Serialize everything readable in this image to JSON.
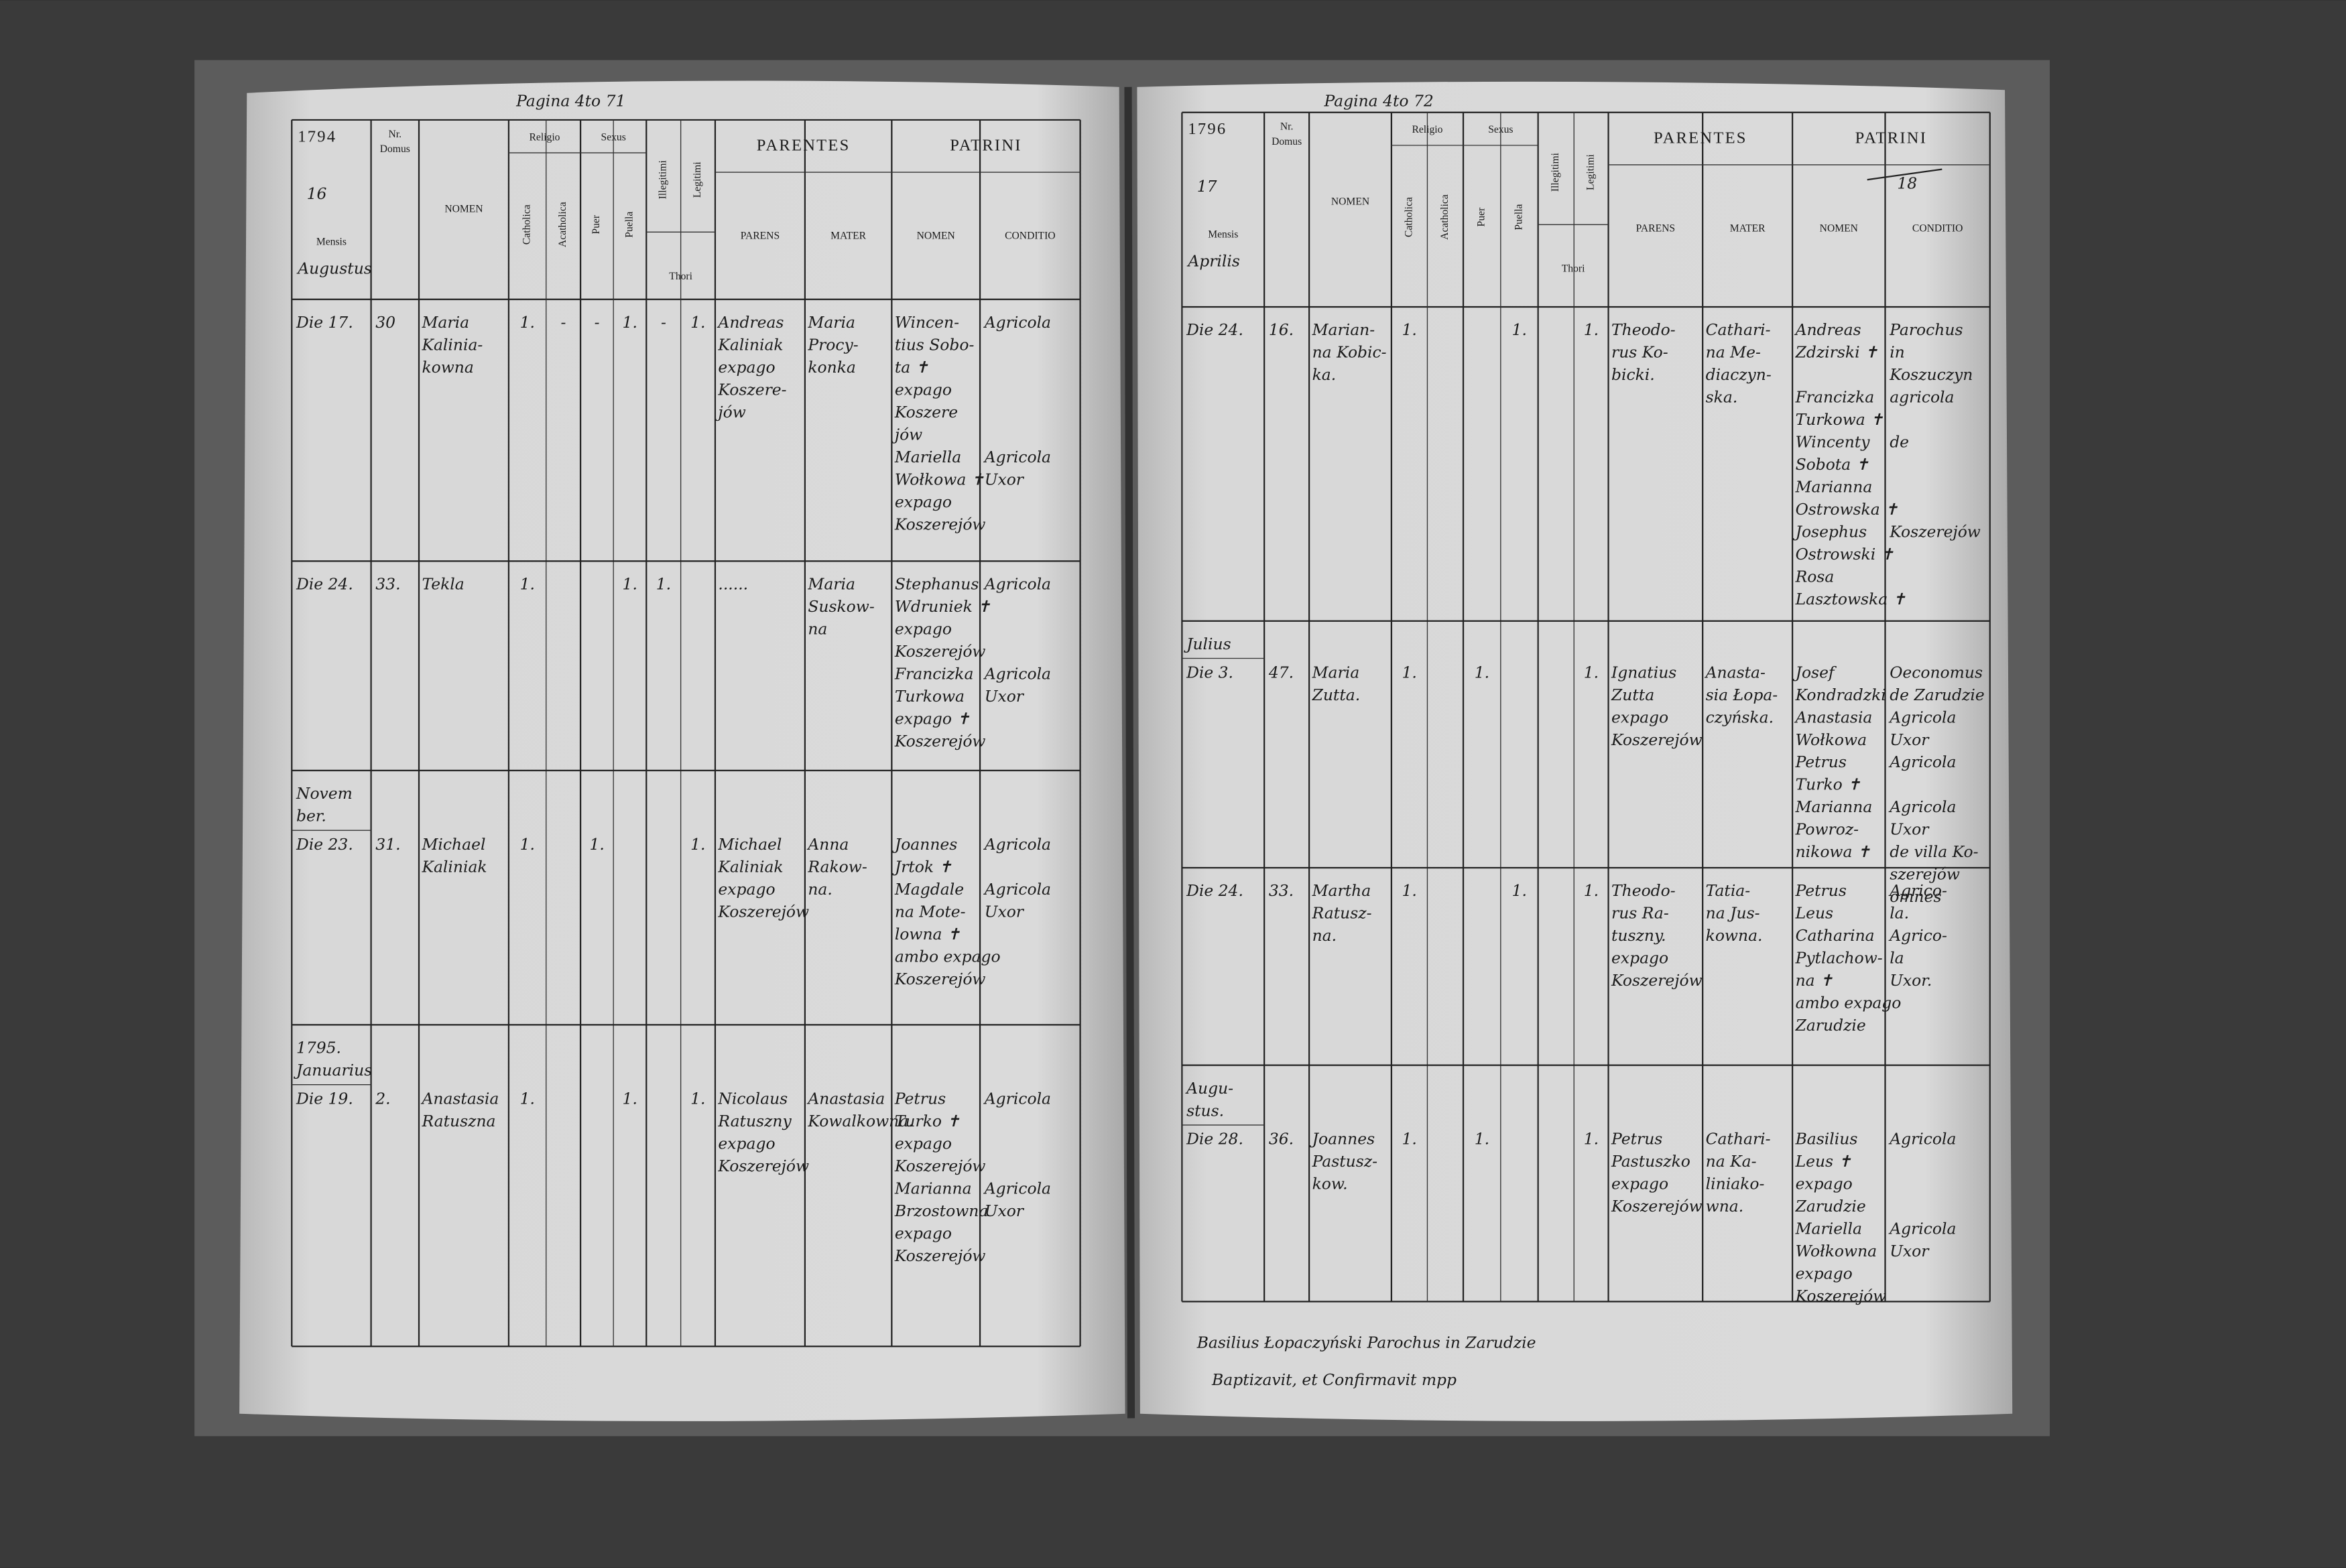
{
  "left_page": {
    "top_note": "Pagina 4to 71",
    "year": "1794",
    "page_number": "16",
    "month": "Augustus",
    "header": {
      "nr": "Nr.",
      "domus": "Domus",
      "mensis": "Mensis",
      "nomen": "NOMEN",
      "religio": "Religio",
      "sexus": "Sexus",
      "catholica": "Catholica",
      "acatholica": "Acatholica",
      "puer": "Puer",
      "puella": "Puella",
      "illegitimi": "Illegitimi",
      "legitimi": "Legitimi",
      "thori": "Thori",
      "parentes": "PARENTES",
      "patrini": "PATRINI",
      "parens": "PARENS",
      "mater": "MATER",
      "patrini_nomen": "NOMEN",
      "conditio": "CONDITIO"
    },
    "rows": [
      {
        "date": "Die 17.",
        "nr": "30",
        "nomen": [
          "Maria",
          "Kalinia-",
          "kowna"
        ],
        "marks": {
          "catholica": "1.",
          "acatholica": "-",
          "puer": "-",
          "puella": "1.",
          "illegitimi": "-",
          "legitimi": "1."
        },
        "parens": [
          "Andreas",
          "Kaliniak",
          "expago",
          "Koszere-",
          "jów"
        ],
        "mater": [
          "Maria",
          "Procy-",
          "konka"
        ],
        "patrini": [
          {
            "lines": [
              "Wincen-",
              "tius Sobo-",
              "ta ✝",
              "expago",
              "Koszere",
              "jów"
            ],
            "conditio": [
              "Agricola"
            ]
          },
          {
            "lines": [
              "Mariella",
              "Wołkowa ✝",
              "expago",
              "Koszerejów"
            ],
            "conditio": [
              "Agricola",
              "Uxor"
            ]
          }
        ]
      },
      {
        "date": "Die 24.",
        "nr": "33.",
        "nomen": [
          "Tekla"
        ],
        "marks": {
          "catholica": "1.",
          "puella": "1.",
          "illegitimi": "1."
        },
        "parens": [
          "......"
        ],
        "mater": [
          "Maria",
          "Suskow-",
          "na"
        ],
        "patrini": [
          {
            "lines": [
              "Stephanus",
              "Wdruniek ✝",
              "expago",
              "Koszerejów"
            ],
            "conditio": [
              "Agricola"
            ]
          },
          {
            "lines": [
              "Francizka",
              "Turkowa",
              "expago ✝",
              "Koszerejów"
            ],
            "conditio": [
              "Agricola",
              "Uxor"
            ]
          }
        ]
      },
      {
        "heading": [
          "Novem",
          "ber."
        ],
        "date": "Die 23.",
        "nr": "31.",
        "nomen": [
          "Michael",
          "Kaliniak"
        ],
        "marks": {
          "catholica": "1.",
          "puer": "1.",
          "legitimi": "1."
        },
        "parens": [
          "Michael",
          "Kaliniak",
          "expago",
          "Koszerejów"
        ],
        "mater": [
          "Anna",
          "Rakow-",
          "na."
        ],
        "patrini": [
          {
            "lines": [
              "Joannes",
              "Jrtok ✝"
            ],
            "conditio": [
              "Agricola"
            ]
          },
          {
            "lines": [
              "Magdale",
              "na Mote-",
              "lowna ✝",
              "ambo expago",
              "Koszerejów"
            ],
            "conditio": [
              "Agricola",
              "Uxor"
            ]
          }
        ]
      },
      {
        "heading": [
          "1795.",
          "Januarius"
        ],
        "date": "Die 19.",
        "nr": "2.",
        "nomen": [
          "Anastasia",
          "Ratuszna"
        ],
        "marks": {
          "catholica": "1.",
          "puella": "1.",
          "legitimi": "1."
        },
        "parens": [
          "Nicolaus",
          "Ratuszny",
          "expago",
          "Koszerejów"
        ],
        "mater": [
          "Anastasia",
          "Kowalkowna."
        ],
        "patrini": [
          {
            "lines": [
              "Petrus",
              "Turko ✝",
              "expago",
              "Koszerejów"
            ],
            "conditio": [
              "Agricola"
            ]
          },
          {
            "lines": [
              "Marianna",
              "Brzostowna",
              "expago",
              "Koszerejów"
            ],
            "conditio": [
              "Agricola",
              "Uxor"
            ]
          }
        ]
      }
    ]
  },
  "right_page": {
    "top_note": "Pagina 4to 72",
    "year": "1796",
    "page_number": "17",
    "crossed_number": "18",
    "month": "Aprilis",
    "header": {
      "nr": "Nr.",
      "domus": "Domus",
      "mensis": "Mensis",
      "nomen": "NOMEN",
      "religio": "Religio",
      "sexus": "Sexus",
      "catholica": "Catholica",
      "acatholica": "Acatholica",
      "puer": "Puer",
      "puella": "Puella",
      "illegitimi": "Illegitimi",
      "legitimi": "Legitimi",
      "thori": "Thori",
      "parentes": "PARENTES",
      "patrini": "PATRINI",
      "parens": "PARENS",
      "mater": "MATER",
      "patrini_nomen": "NOMEN",
      "conditio": "CONDITIO"
    },
    "rows": [
      {
        "date": "Die 24.",
        "nr": "16.",
        "nomen": [
          "Marian-",
          "na Kobic-",
          "ka."
        ],
        "marks": {
          "catholica": "1.",
          "puella": "1.",
          "legitimi": "1."
        },
        "parens": [
          "Theodo-",
          "rus Ko-",
          "bicki."
        ],
        "mater": [
          "Cathari-",
          "na Me-",
          "diaczyn-",
          "ska."
        ],
        "patrini": [
          {
            "lines": [
              "Andreas",
              "Zdzirski ✝"
            ],
            "conditio": [
              "Parochus",
              "in",
              "Koszuczyn"
            ]
          },
          {
            "lines": [
              "Francizka",
              "Turkowa ✝"
            ],
            "conditio": [
              "agricola"
            ]
          },
          {
            "lines": [
              "Wincenty",
              "Sobota ✝"
            ],
            "conditio": [
              "de"
            ]
          },
          {
            "lines": [
              "Marianna",
              "Ostrowska ✝"
            ]
          },
          {
            "lines": [
              "Josephus",
              "Ostrowski ✝"
            ],
            "conditio": [
              "Koszerejów"
            ]
          },
          {
            "lines": [
              "Rosa",
              "Lasztowska ✝"
            ]
          }
        ]
      },
      {
        "heading": [
          "Julius"
        ],
        "date": "Die 3.",
        "nr": "47.",
        "nomen": [
          "Maria",
          "Zutta."
        ],
        "marks": {
          "catholica": "1.",
          "puer": "1.",
          "legitimi": "1."
        },
        "parens": [
          "Ignatius",
          "Zutta",
          "expago",
          "Koszerejów"
        ],
        "mater": [
          "Anasta-",
          "sia Łopa-",
          "czyńska."
        ],
        "patrini": [
          {
            "lines": [
              "Josef",
              "Kondradzki"
            ],
            "conditio": [
              "Oeconomus",
              "de Zarudzie"
            ]
          },
          {
            "lines": [
              "Anastasia",
              "Wołkowa"
            ],
            "conditio": [
              "Agricola",
              "Uxor"
            ]
          },
          {
            "lines": [
              "Petrus",
              "Turko ✝"
            ],
            "conditio": [
              "Agricola"
            ]
          },
          {
            "lines": [
              "Marianna",
              "Powroz-",
              "nikowa ✝"
            ],
            "conditio": [
              "Agricola",
              "Uxor",
              "de villa Ko-",
              "szerejów",
              "omnes"
            ]
          }
        ]
      },
      {
        "date": "Die 24.",
        "nr": "33.",
        "nomen": [
          "Martha",
          "Ratusz-",
          "na."
        ],
        "marks": {
          "catholica": "1.",
          "puella": "1.",
          "legitimi": "1."
        },
        "parens": [
          "Theodo-",
          "rus Ra-",
          "tuszny.",
          "expago",
          "Koszerejów"
        ],
        "mater": [
          "Tatia-",
          "na Jus-",
          "kowna."
        ],
        "patrini": [
          {
            "lines": [
              "Petrus",
              "Leus"
            ],
            "conditio": [
              "Agrico-",
              "la."
            ]
          },
          {
            "lines": [
              "Catharina",
              "Pytlachow-",
              "na ✝",
              "ambo expago",
              "Zarudzie"
            ],
            "conditio": [
              "Agrico-",
              "la",
              "Uxor."
            ]
          }
        ]
      },
      {
        "heading": [
          "Augu-",
          "stus."
        ],
        "date": "Die 28.",
        "nr": "36.",
        "nomen": [
          "Joannes",
          "Pastusz-",
          "kow."
        ],
        "marks": {
          "catholica": "1.",
          "puer": "1.",
          "legitimi": "1."
        },
        "parens": [
          "Petrus",
          "Pastuszko",
          "expago",
          "Koszerejów"
        ],
        "mater": [
          "Cathari-",
          "na Ka-",
          "liniako-",
          "wna."
        ],
        "patrini": [
          {
            "lines": [
              "Basilius",
              "Leus ✝",
              "expago",
              "Zarudzie"
            ],
            "conditio": [
              "Agricola"
            ]
          },
          {
            "lines": [
              "Mariella",
              "Wołkowna",
              "expago",
              "Koszerejów"
            ],
            "conditio": [
              "Agricola",
              "Uxor"
            ]
          }
        ]
      }
    ],
    "footer": [
      "Basilius Łopaczyński Parochus in Zarudzie",
      "Baptizavit, et Confirmavit mpp"
    ]
  }
}
